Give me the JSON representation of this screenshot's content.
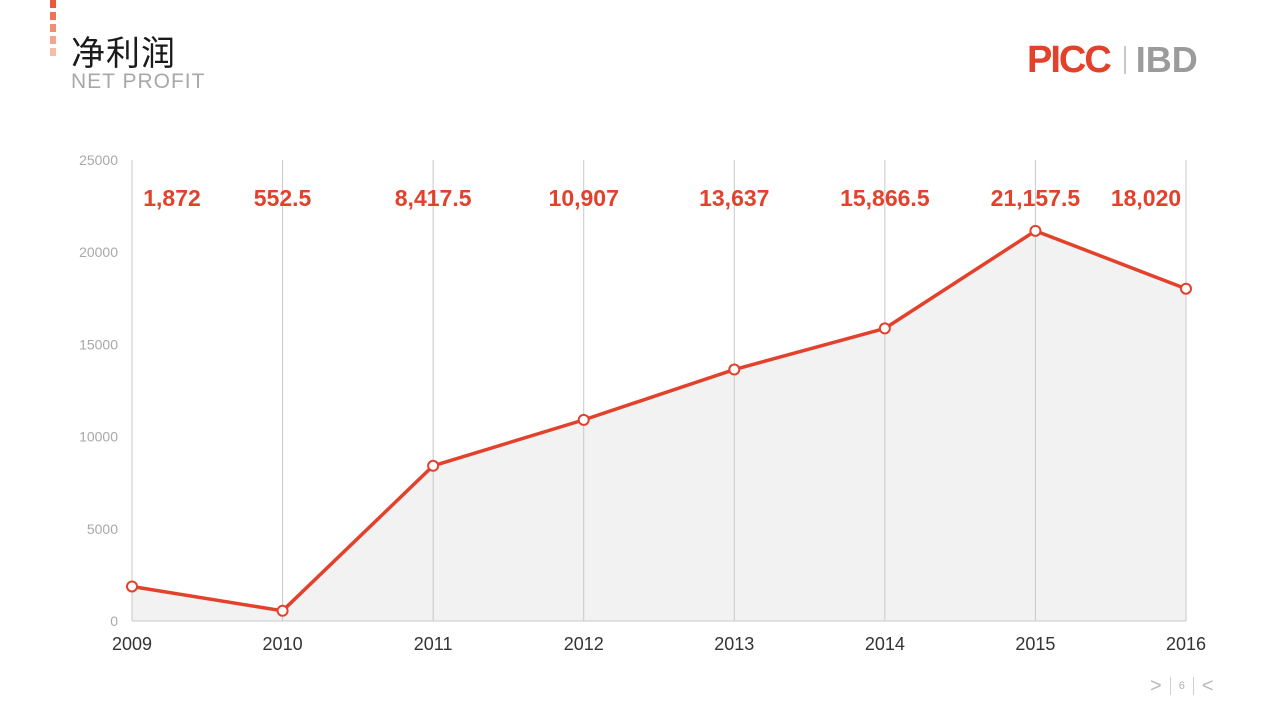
{
  "header": {
    "title_zh": "净利润",
    "title_en": "NET PROFIT"
  },
  "logo": {
    "left_text": "PICC",
    "right_text": "IBD"
  },
  "colors": {
    "accent": "#e2412b",
    "logo_gray": "#9b9b9b",
    "area_fill": "#f3f2f2",
    "axis": "#c8c8c8",
    "tick_text": "#a8a8a8",
    "bar_stripes": [
      "#ea5a3c",
      "#ed7457",
      "#f08e73",
      "#f3a68e",
      "#f6bea9"
    ]
  },
  "footer": {
    "page_number": "6",
    "next_icon": "chevron-right-icon",
    "prev_icon": "chevron-left-icon"
  },
  "chart_data": {
    "type": "area",
    "title": "",
    "xlabel": "",
    "ylabel": "",
    "x": [
      "2009",
      "2010",
      "2011",
      "2012",
      "2013",
      "2014",
      "2015",
      "2016"
    ],
    "series": [
      {
        "values": [
          1872,
          552.5,
          8417.5,
          10907,
          13637,
          15866.5,
          21157.5,
          18020
        ],
        "labels": [
          "1,872",
          "552.5",
          "8,417.5",
          "10,907",
          "13,637",
          "15,866.5",
          "21,157.5",
          "18,020"
        ]
      }
    ],
    "ylim": [
      0,
      25000
    ],
    "yticks": [
      "0",
      "5000",
      "10000",
      "15000",
      "20000",
      "25000"
    ],
    "grid": "vertical"
  }
}
